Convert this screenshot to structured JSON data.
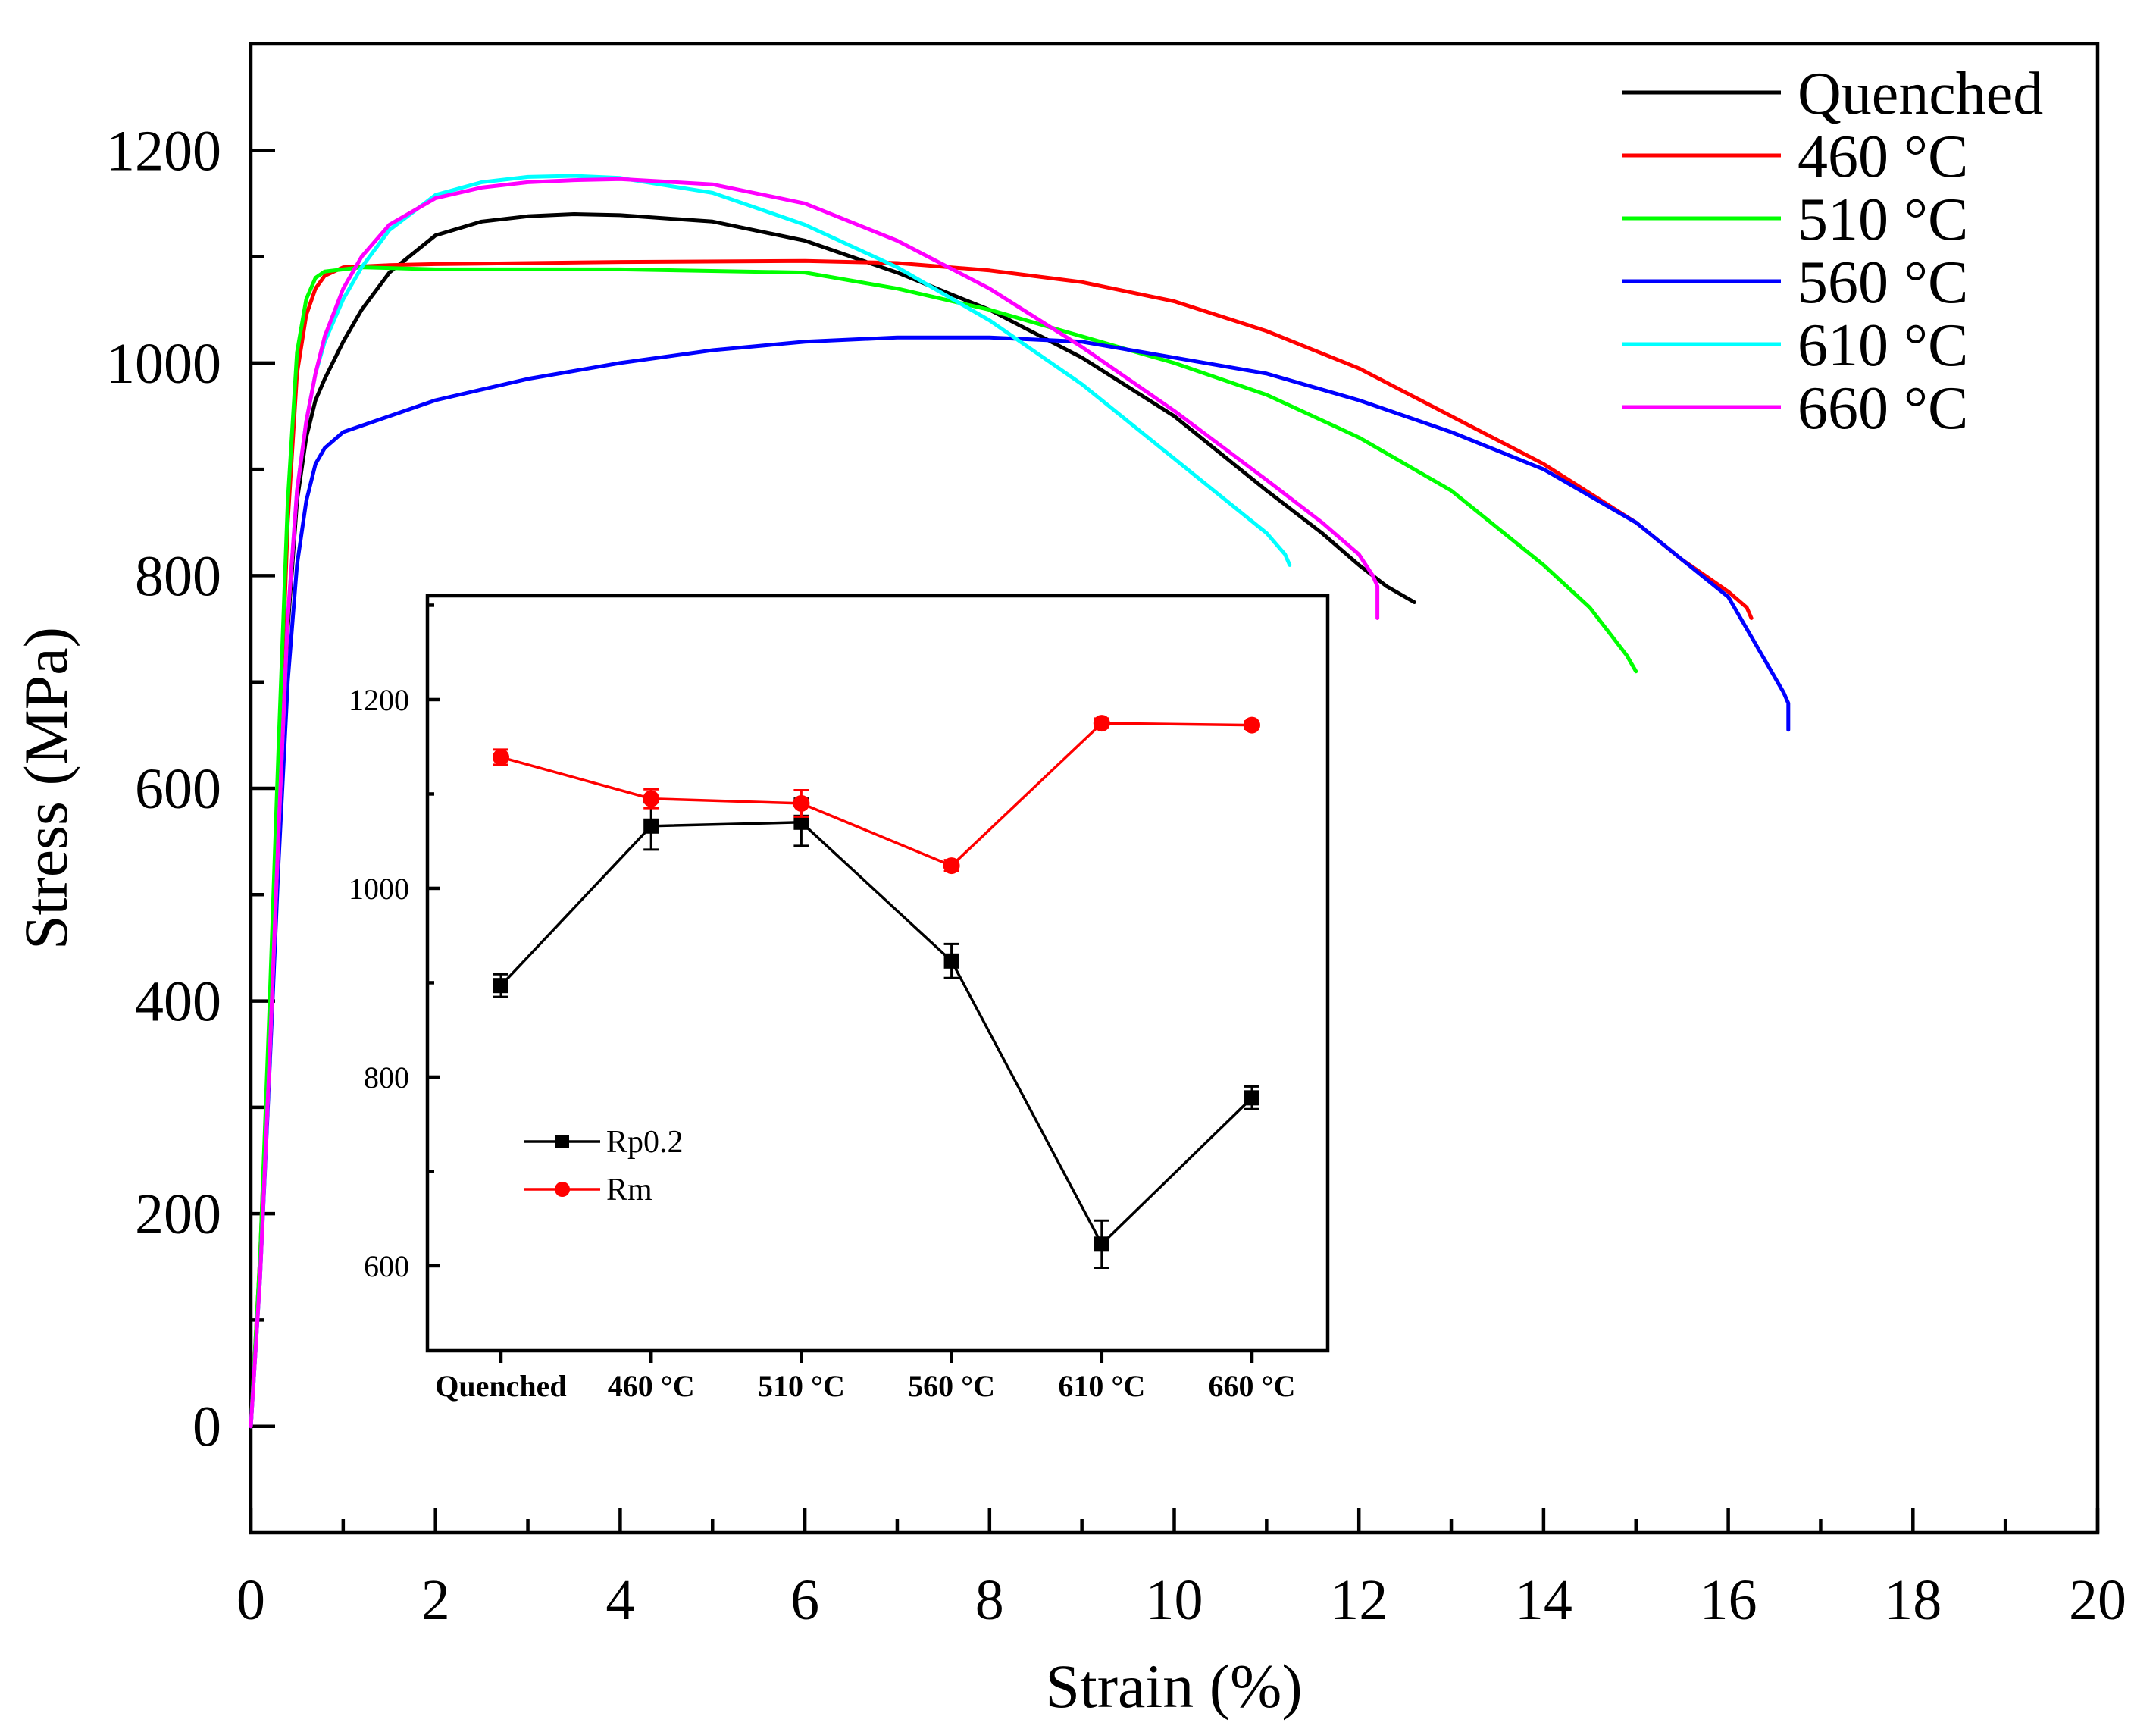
{
  "chart_data": [
    {
      "type": "line",
      "title": "",
      "xlabel": "Strain (%)",
      "ylabel": "Stress (MPa)",
      "xlim": [
        0,
        20
      ],
      "ylim": [
        -100,
        1300
      ],
      "xticks": [
        0,
        2,
        4,
        6,
        8,
        10,
        12,
        14,
        16,
        18,
        20
      ],
      "yticks": [
        0,
        200,
        400,
        600,
        800,
        1000,
        1200
      ],
      "grid": false,
      "legend_position": "top-right",
      "series": [
        {
          "name": "Quenched",
          "color": "#000000",
          "x": [
            0,
            0.1,
            0.2,
            0.3,
            0.4,
            0.5,
            0.6,
            0.7,
            0.8,
            1.0,
            1.2,
            1.5,
            2.0,
            2.5,
            3.0,
            3.5,
            4.0,
            5.0,
            6.0,
            7.0,
            8.0,
            9.0,
            10.0,
            11.0,
            11.6,
            12.0,
            12.3,
            12.6
          ],
          "y": [
            0,
            150,
            350,
            560,
            750,
            870,
            930,
            965,
            985,
            1020,
            1050,
            1085,
            1120,
            1133,
            1138,
            1140,
            1139,
            1133,
            1115,
            1085,
            1050,
            1005,
            950,
            880,
            840,
            810,
            790,
            775
          ]
        },
        {
          "name": "460 °C",
          "color": "#ff0000",
          "x": [
            0,
            0.1,
            0.2,
            0.3,
            0.4,
            0.5,
            0.6,
            0.7,
            0.8,
            1.0,
            1.5,
            2.0,
            4.0,
            6.0,
            7.0,
            8.0,
            9.0,
            10.0,
            11.0,
            12.0,
            13.0,
            14.0,
            15.0,
            15.5,
            16.0,
            16.2,
            16.25
          ],
          "y": [
            0,
            160,
            380,
            620,
            850,
            990,
            1045,
            1070,
            1082,
            1090,
            1092,
            1093,
            1095,
            1096,
            1094,
            1087,
            1076,
            1058,
            1030,
            995,
            950,
            905,
            850,
            815,
            785,
            770,
            760
          ]
        },
        {
          "name": "510 °C",
          "color": "#00ff00",
          "x": [
            0,
            0.1,
            0.2,
            0.3,
            0.4,
            0.5,
            0.6,
            0.7,
            0.8,
            1.0,
            1.2,
            2.0,
            4.0,
            6.0,
            7.0,
            8.0,
            9.0,
            10.0,
            11.0,
            12.0,
            13.0,
            14.0,
            14.5,
            14.9,
            15.0
          ],
          "y": [
            0,
            160,
            390,
            640,
            870,
            1010,
            1060,
            1080,
            1086,
            1088,
            1090,
            1088,
            1088,
            1085,
            1070,
            1050,
            1025,
            1000,
            970,
            930,
            880,
            810,
            770,
            725,
            710
          ]
        },
        {
          "name": "560 °C",
          "color": "#0000ff",
          "x": [
            0,
            0.1,
            0.2,
            0.3,
            0.4,
            0.5,
            0.6,
            0.7,
            0.8,
            1.0,
            1.5,
            2.0,
            3.0,
            4.0,
            5.0,
            6.0,
            7.0,
            8.0,
            9.0,
            10.0,
            11.0,
            12.0,
            13.0,
            14.0,
            15.0,
            16.0,
            16.6,
            16.65,
            16.65
          ],
          "y": [
            0,
            140,
            330,
            530,
            700,
            810,
            870,
            905,
            920,
            935,
            950,
            965,
            985,
            1000,
            1012,
            1020,
            1024,
            1024,
            1020,
            1005,
            990,
            965,
            935,
            900,
            850,
            780,
            690,
            680,
            655
          ]
        },
        {
          "name": "610 °C",
          "color": "#00ffff",
          "x": [
            0,
            0.1,
            0.2,
            0.3,
            0.4,
            0.5,
            0.6,
            0.7,
            0.8,
            1.0,
            1.2,
            1.5,
            2.0,
            2.5,
            3.0,
            3.5,
            4.0,
            5.0,
            6.0,
            7.0,
            8.0,
            9.0,
            10.0,
            10.5,
            11.0,
            11.2,
            11.25
          ],
          "y": [
            0,
            140,
            340,
            560,
            760,
            880,
            945,
            990,
            1020,
            1060,
            1090,
            1125,
            1158,
            1170,
            1175,
            1176,
            1174,
            1160,
            1130,
            1090,
            1040,
            980,
            910,
            875,
            840,
            820,
            810
          ]
        },
        {
          "name": "660 °C",
          "color": "#ff00ff",
          "x": [
            0,
            0.1,
            0.2,
            0.3,
            0.4,
            0.5,
            0.6,
            0.7,
            0.8,
            1.0,
            1.2,
            1.5,
            2.0,
            2.5,
            3.0,
            3.5,
            4.0,
            5.0,
            6.0,
            7.0,
            8.0,
            9.0,
            10.0,
            11.0,
            11.6,
            12.0,
            12.15,
            12.2,
            12.2
          ],
          "y": [
            0,
            140,
            340,
            560,
            760,
            880,
            945,
            990,
            1025,
            1070,
            1100,
            1130,
            1155,
            1165,
            1170,
            1172,
            1173,
            1168,
            1150,
            1115,
            1070,
            1015,
            955,
            890,
            850,
            820,
            800,
            790,
            760
          ]
        }
      ]
    },
    {
      "type": "line",
      "title": "",
      "xlabel": "",
      "ylabel": "",
      "categories": [
        "Quenched",
        "460 °C",
        "510 °C",
        "560 °C",
        "610 °C",
        "660 °C"
      ],
      "ylim": [
        510,
        1310
      ],
      "yticks": [
        600,
        800,
        1000,
        1200
      ],
      "legend_position": "lower-left",
      "series": [
        {
          "name": "Rp0.2",
          "color": "#000000",
          "marker": "square",
          "values": [
            897,
            1066,
            1070,
            923,
            623,
            778
          ],
          "errors": [
            12,
            25,
            25,
            18,
            25,
            12
          ]
        },
        {
          "name": "Rm",
          "color": "#ff0000",
          "marker": "circle",
          "values": [
            1139,
            1095,
            1090,
            1024,
            1175,
            1173
          ],
          "errors": [
            8,
            10,
            14,
            6,
            5,
            4
          ]
        }
      ]
    }
  ]
}
